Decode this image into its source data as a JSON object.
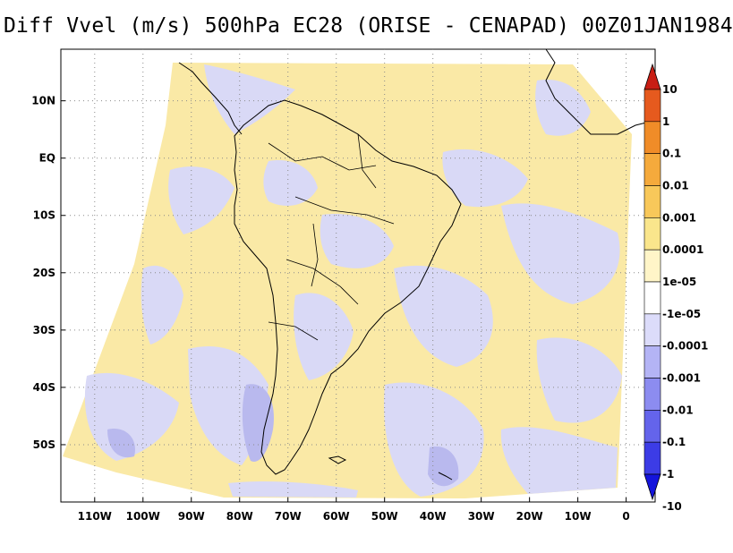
{
  "title": "Diff Vvel (m/s) 500hPa EC28 (ORISE - CENAPAD) 00Z01JAN1984",
  "axes": {
    "lon_labels": [
      "110W",
      "100W",
      "90W",
      "80W",
      "70W",
      "60W",
      "50W",
      "40W",
      "30W",
      "20W",
      "10W",
      "0"
    ],
    "lat_labels": [
      "10N",
      "EQ",
      "10S",
      "20S",
      "30S",
      "40S",
      "50S"
    ],
    "lon_values": [
      -110,
      -100,
      -90,
      -80,
      -70,
      -60,
      -50,
      -40,
      -30,
      -20,
      -10,
      0
    ],
    "lat_values": [
      10,
      0,
      -10,
      -20,
      -30,
      -40,
      -50
    ],
    "lon_range": [
      -117,
      6
    ],
    "lat_range": [
      -60,
      19
    ],
    "grid": "dotted"
  },
  "colorbar": {
    "labels": [
      "10",
      "1",
      "0.1",
      "0.01",
      "0.001",
      "0.0001",
      "1e-05",
      "-1e-05",
      "-0.0001",
      "-0.001",
      "-0.01",
      "-0.1",
      "-1",
      "-10"
    ],
    "colors": [
      "#c81e14",
      "#e65a1e",
      "#f08c28",
      "#f5aa3c",
      "#f8c85a",
      "#fae68c",
      "#fff5c8",
      "#ffffff",
      "#dcdcfa",
      "#b4b4f5",
      "#8c8cf0",
      "#6464eb",
      "#3c3ce6",
      "#1414dc"
    ],
    "end_arrows": true
  },
  "map_colors": {
    "positive": "#fae9a6",
    "negative": "#d9d9f6",
    "negative_strong": "#b9b9ee",
    "coast": "#000000"
  }
}
